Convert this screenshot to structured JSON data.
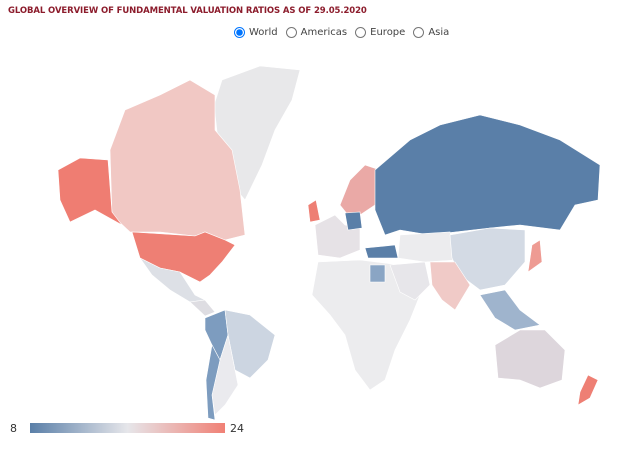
{
  "title": "GLOBAL OVERVIEW OF FUNDAMENTAL VALUATION RATIOS AS OF 29.05.2020",
  "options": [
    "World",
    "Americas",
    "Europe",
    "Asia"
  ],
  "selected": "World",
  "legend": {
    "min": 8,
    "max": 24,
    "colors": [
      "#5a7fa8",
      "#e6e6ea",
      "#f08075"
    ]
  }
}
